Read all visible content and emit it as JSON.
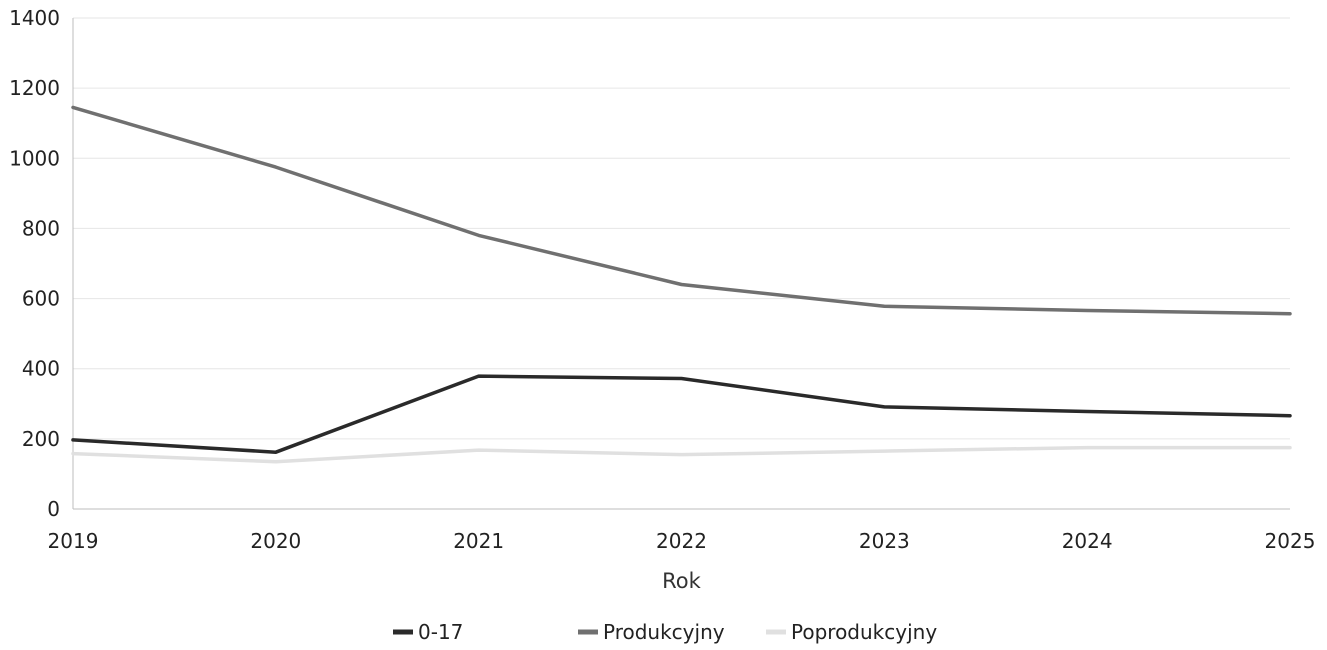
{
  "chart_data": {
    "type": "line",
    "title": "",
    "xlabel": "Rok",
    "ylabel": "",
    "x": [
      "2019",
      "2020",
      "2021",
      "2022",
      "2023",
      "2024",
      "2025"
    ],
    "ylim": [
      0,
      1400
    ],
    "yticks": [
      "0",
      "200",
      "400",
      "600",
      "800",
      "1000",
      "1200",
      "1400"
    ],
    "grid": true,
    "legend_position": "bottom",
    "series": [
      {
        "name": "0-17",
        "color": "#2a2a2a",
        "values": [
          197,
          162,
          379,
          372,
          291,
          278,
          266
        ]
      },
      {
        "name": "Produkcyjny",
        "color": "#707070",
        "values": [
          1145,
          975,
          780,
          640,
          578,
          566,
          557
        ]
      },
      {
        "name": "Poprodukcyjny",
        "color": "#e0e0e0",
        "values": [
          158,
          135,
          168,
          155,
          165,
          175,
          175
        ]
      }
    ]
  }
}
